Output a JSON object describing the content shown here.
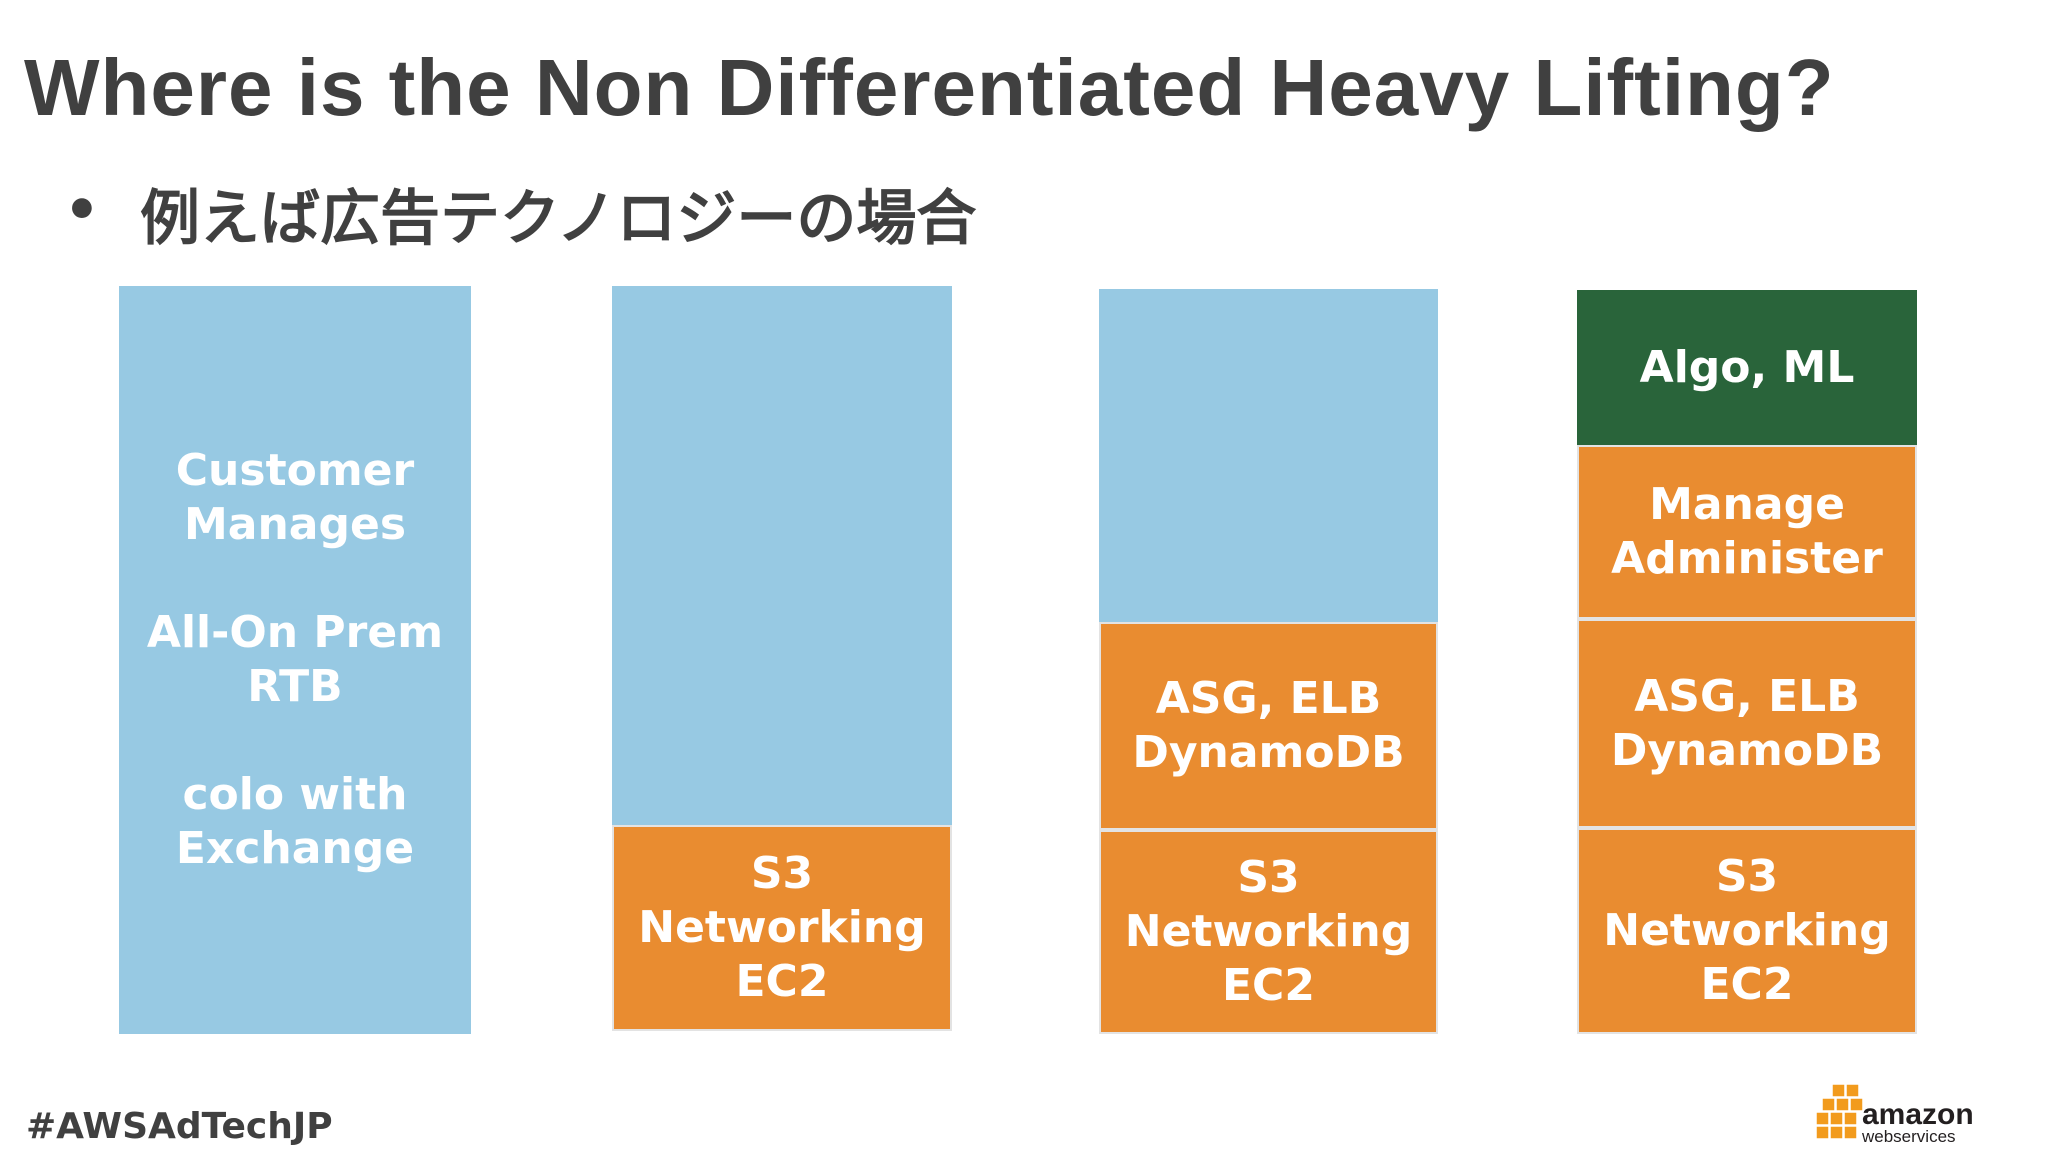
{
  "header": {
    "title": "Where is the Non Differentiated Heavy Lifting?",
    "bullet": "•",
    "subtitle": "例えば広告テクノロジーの場合"
  },
  "columns": [
    {
      "blocks": [
        {
          "paragraphs": [
            [
              "Customer",
              "Manages"
            ],
            [
              "All-On Prem",
              "RTB"
            ],
            [
              "colo with",
              "Exchange"
            ]
          ]
        }
      ]
    },
    {
      "blocks": [
        {
          "paragraphs": [
            [
              "S3",
              "Networking",
              "EC2"
            ]
          ]
        }
      ]
    },
    {
      "blocks": [
        {
          "paragraphs": [
            [
              "ASG, ELB",
              "DynamoDB"
            ]
          ]
        },
        {
          "paragraphs": [
            [
              "S3",
              "Networking",
              "EC2"
            ]
          ]
        }
      ]
    },
    {
      "blocks": [
        {
          "paragraphs": [
            [
              "Algo, ML"
            ]
          ]
        },
        {
          "paragraphs": [
            [
              "Manage",
              "Administer"
            ]
          ]
        },
        {
          "paragraphs": [
            [
              "ASG, ELB",
              "DynamoDB"
            ]
          ]
        },
        {
          "paragraphs": [
            [
              "S3",
              "Networking",
              "EC2"
            ]
          ]
        }
      ]
    }
  ],
  "footer": {
    "hashtag": "#AWSAdTechJP",
    "logo_word": "amazon",
    "logo_sub": "webservices"
  }
}
